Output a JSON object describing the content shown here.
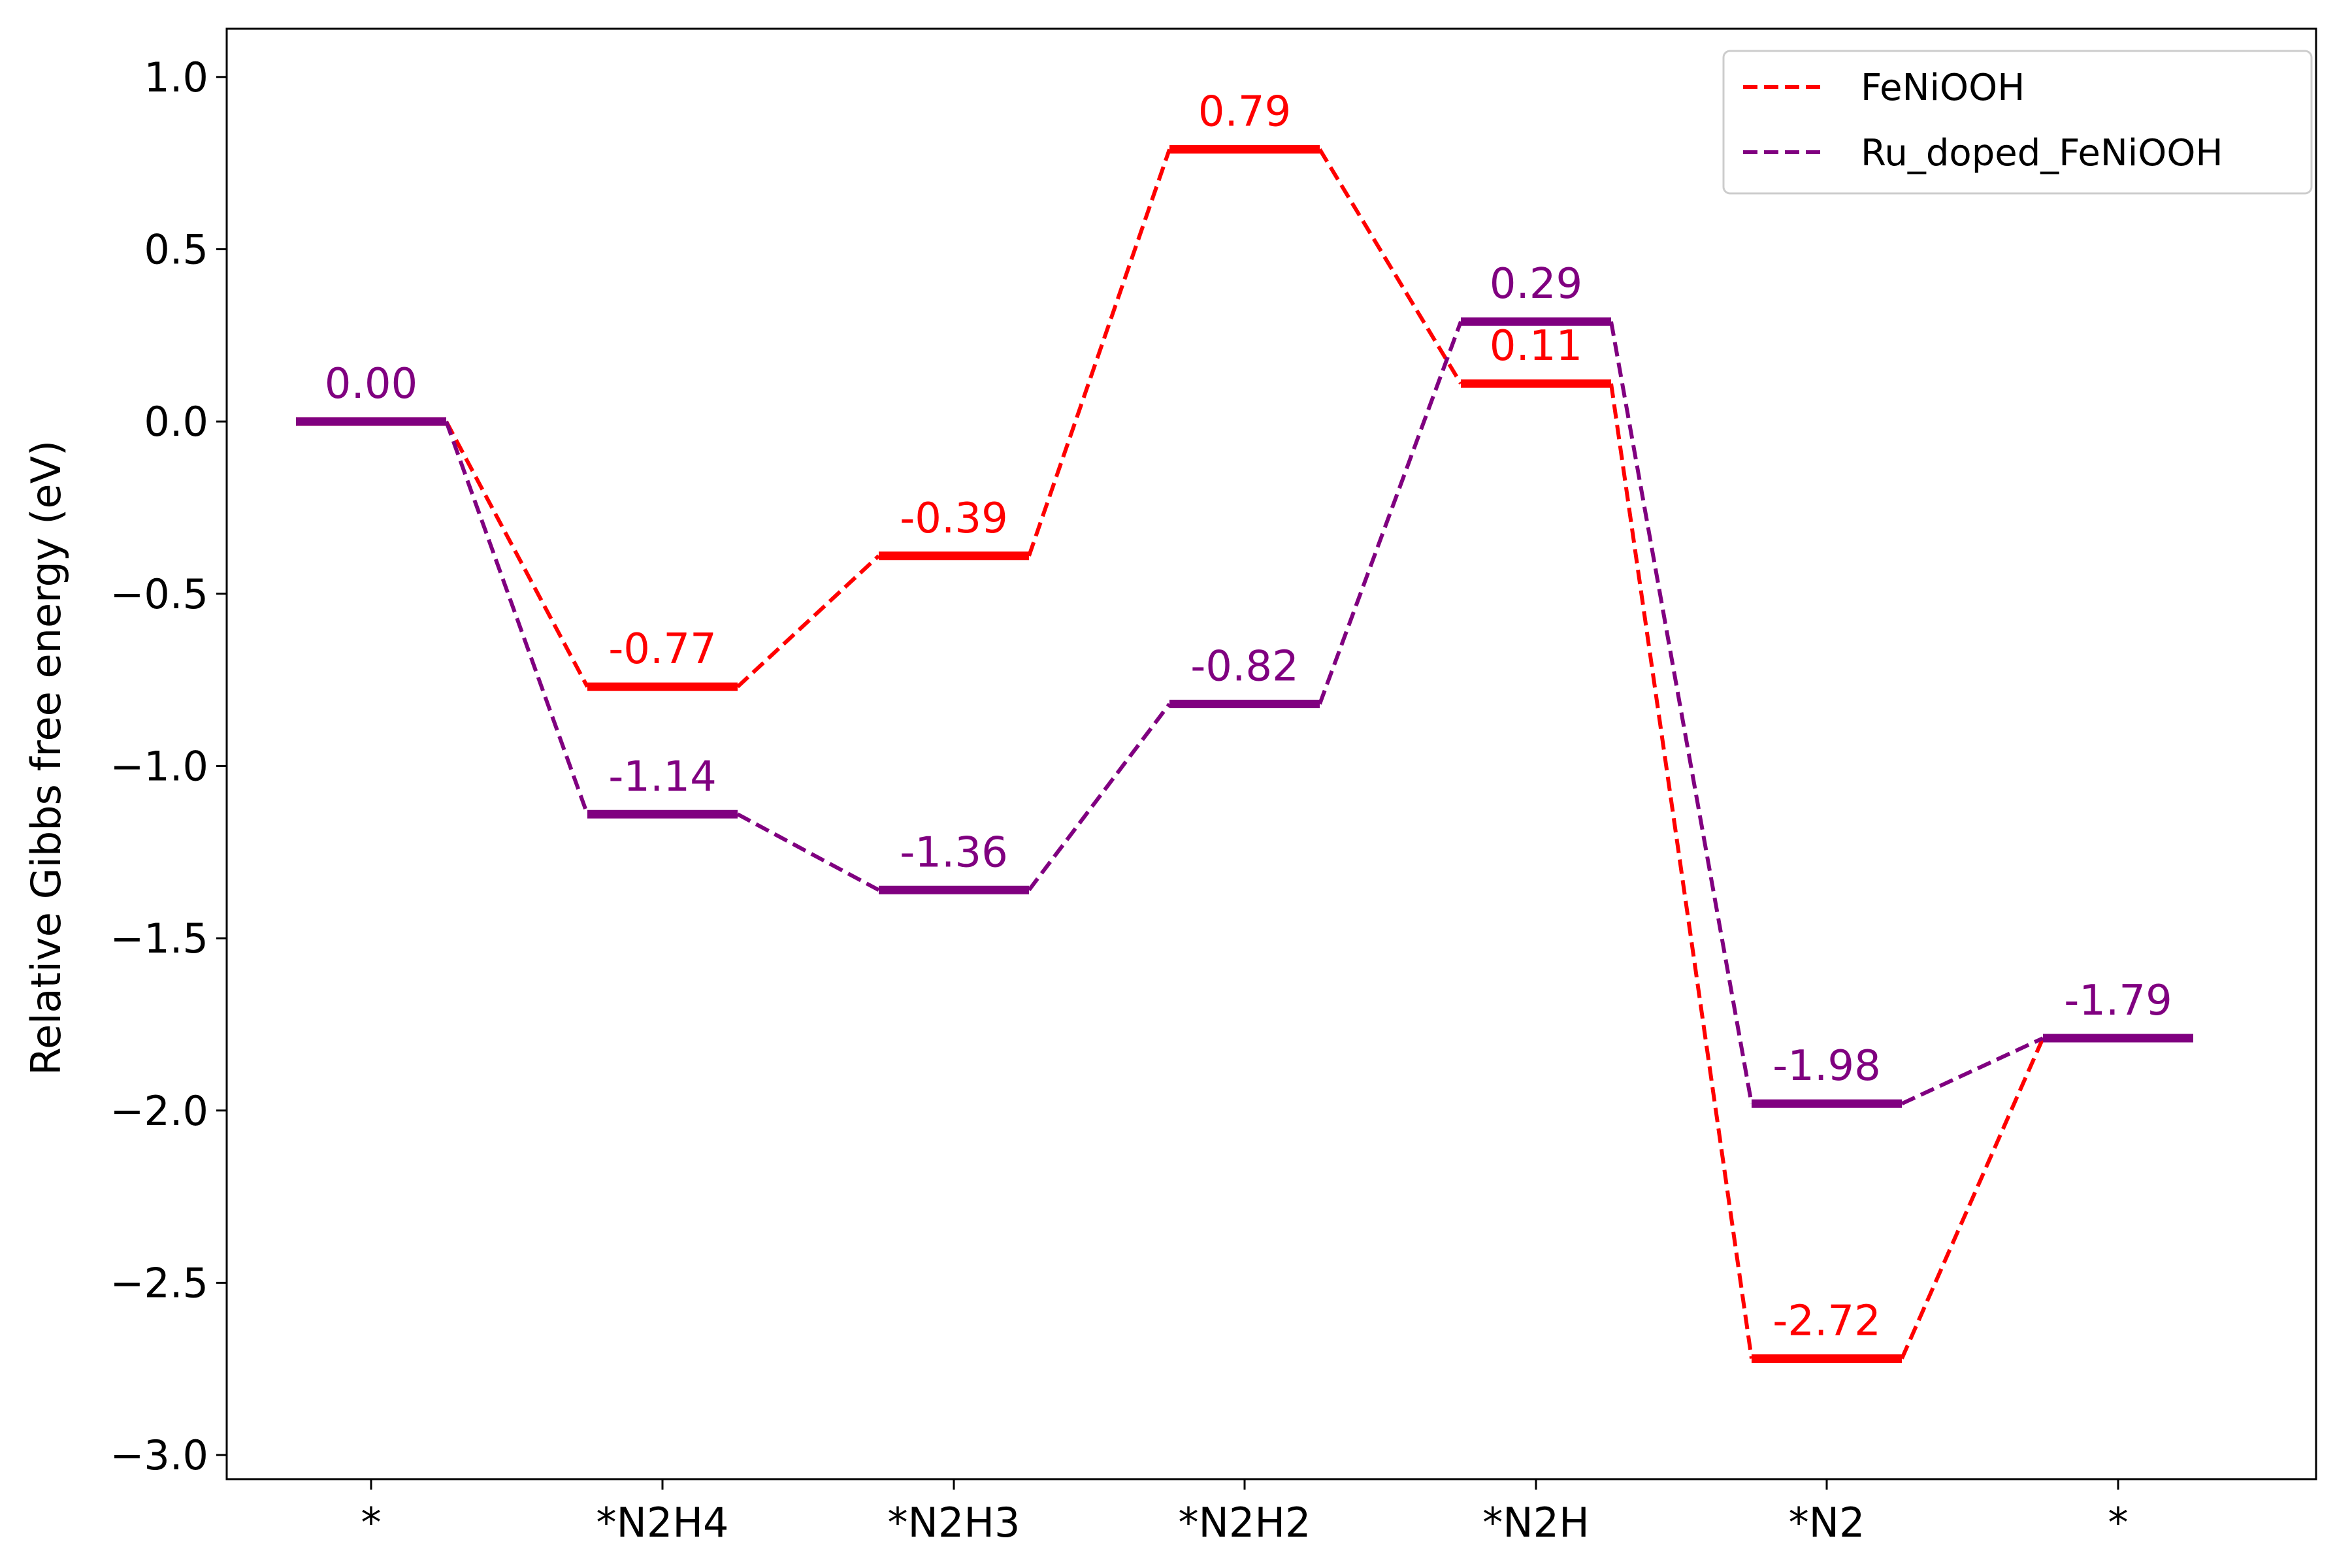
{
  "chart_data": {
    "type": "line",
    "title": "",
    "xlabel": "",
    "ylabel": "Relative Gibbs free energy (eV)",
    "categories": [
      "*",
      "*N2H4",
      "*N2H3",
      "*N2H2",
      "*N2H",
      "*N2",
      "*"
    ],
    "ylim": [
      -3.07,
      1.14
    ],
    "yticks": [
      1.0,
      0.5,
      0.0,
      -0.5,
      -1.0,
      -1.5,
      -2.0,
      -2.5,
      -3.0
    ],
    "ytick_labels": [
      "1.0",
      "0.5",
      "0.0",
      "−0.5",
      "−1.0",
      "−1.5",
      "−2.0",
      "−2.5",
      "−3.0"
    ],
    "grid": false,
    "legend_position": "top-right",
    "series": [
      {
        "name": "FeNiOOH",
        "color": "#ff0000",
        "values": [
          0.0,
          -0.77,
          -0.39,
          0.79,
          0.11,
          -2.72,
          -1.79
        ],
        "labels": [
          null,
          "-0.77",
          "-0.39",
          "0.79",
          "0.11",
          "-2.72",
          null
        ]
      },
      {
        "name": "Ru_doped_FeNiOOH",
        "color": "#800080",
        "values": [
          0.0,
          -1.14,
          -1.36,
          -0.82,
          0.29,
          -1.98,
          -1.79
        ],
        "labels": [
          "0.00",
          "-1.14",
          "-1.36",
          "-0.82",
          "0.29",
          "-1.98",
          "-1.79"
        ]
      }
    ]
  }
}
